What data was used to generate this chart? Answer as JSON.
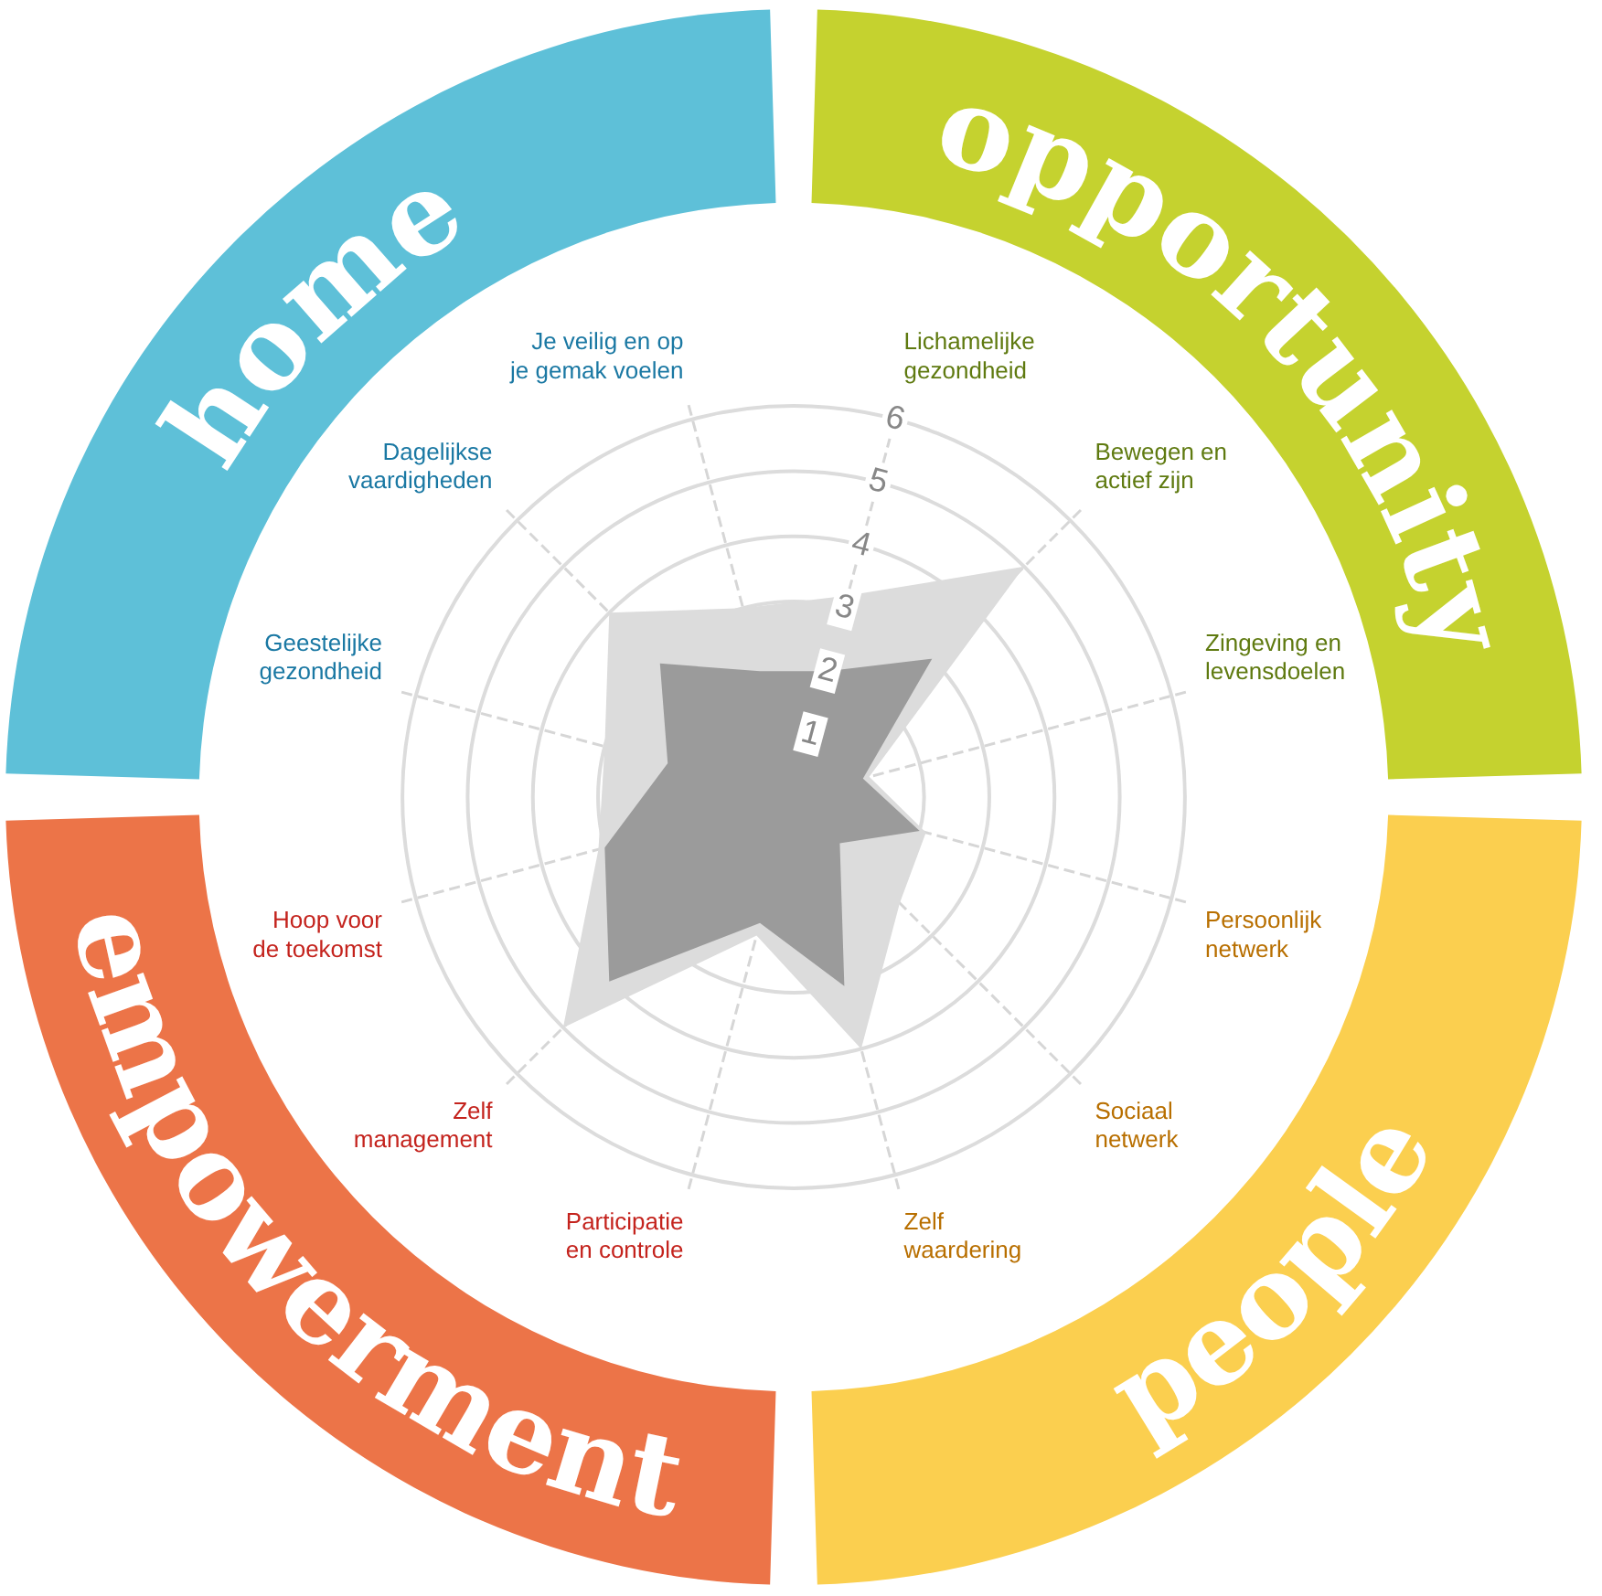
{
  "chart_data": {
    "type": "radar",
    "categories": [
      "Lichamelijke gezondheid",
      "Bewegen en actief zijn",
      "Zingeving en levensdoelen",
      "Persoonlijk netwerk",
      "Sociaal netwerk",
      "Zelf waardering",
      "Participatie en controle",
      "Zelf management",
      "Hoop voor de toekomst",
      "Geestelijke gezondheid",
      "Dagelijkse vaardigheden",
      "Je veilig en op je gemak voelen"
    ],
    "series": [
      {
        "color": "#dcdcdc",
        "values": [
          3.2,
          5,
          1.2,
          2.1,
          2.3,
          4,
          2.2,
          5,
          3.1,
          3,
          4,
          3
        ]
      },
      {
        "color": "#9b9b9b",
        "values": [
          2,
          3,
          1.1,
          2,
          1,
          3,
          2,
          4,
          3,
          2,
          2.9,
          2
        ]
      }
    ],
    "ylim": [
      0,
      6
    ],
    "yticks": [
      1,
      2,
      3,
      4,
      5,
      6
    ],
    "grid": true,
    "legend": false,
    "annotations": [
      "opportunity",
      "people",
      "empowerment",
      "home"
    ]
  }
}
